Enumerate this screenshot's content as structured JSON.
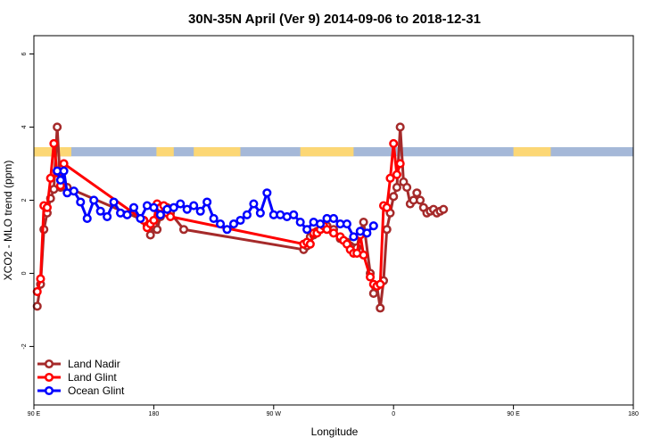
{
  "chart_data": {
    "type": "line",
    "title": "30N-35N April (Ver 9)   2014-09-06 to 2018-12-31",
    "xlabel": "Longitude",
    "ylabel": "XCO2 - MLO trend (ppm)",
    "x_domain": [
      -180,
      270
    ],
    "ylim": [
      -3.6,
      6.5
    ],
    "grid": false,
    "legend_position": "bottom-left",
    "x_ticks": [
      {
        "value": -180,
        "label": "90 E"
      },
      {
        "value": -90,
        "label": "180"
      },
      {
        "value": 0,
        "label": "90 W"
      },
      {
        "value": 90,
        "label": "0"
      },
      {
        "value": 180,
        "label": "90 E"
      },
      {
        "value": 270,
        "label": "180"
      }
    ],
    "y_ticks": [
      {
        "value": -2,
        "label": "-2"
      },
      {
        "value": 0,
        "label": "0"
      },
      {
        "value": 2,
        "label": "2"
      },
      {
        "value": 4,
        "label": "4"
      },
      {
        "value": 6,
        "label": "6"
      }
    ],
    "surface_band": {
      "y_bottom": 3.2,
      "y_top": 3.45,
      "ocean_color": "#a5b8d8",
      "land_color": "#fcd775",
      "land_ranges": [
        [
          -180,
          -152.5
        ],
        [
          -125,
          -90
        ],
        [
          -6.5,
          -7.5
        ],
        [
          -2,
          4
        ],
        [
          0,
          2
        ],
        [
          -118,
          -117
        ],
        [
          -122,
          -121
        ]
      ],
      "land_segments": [
        [
          -180,
          -152
        ],
        [
          -88,
          -75
        ],
        [
          -60,
          -25
        ],
        [
          20,
          60
        ],
        [
          -180,
          -152
        ],
        [
          180,
          208
        ]
      ]
    },
    "series": [
      {
        "name": "Land Nadir",
        "color": "#a52a2a",
        "x": [
          -177.5,
          -175,
          -172.5,
          -170,
          -167.5,
          -165,
          -162.5,
          -160,
          -155,
          -97.5,
          -95,
          -92.5,
          -90,
          -87.5,
          -85,
          -82.5,
          -80,
          -77.5,
          -67.5,
          22.5,
          25,
          27.5,
          30,
          32.5,
          35,
          37.5,
          40,
          45,
          50,
          52.5,
          55,
          57.5,
          60,
          62.5,
          65,
          67.5,
          72.5,
          75,
          77.5,
          80,
          82.5,
          85,
          87.5,
          90,
          92.5,
          95,
          97.5,
          100,
          102.5,
          105,
          107.5,
          110,
          112.5,
          115,
          117.5,
          120,
          122.5,
          125,
          127.5
        ],
        "y": [
          -0.9,
          -0.3,
          1.2,
          1.65,
          2.05,
          2.3,
          4.0,
          2.35,
          2.35,
          1.45,
          1.3,
          1.05,
          1.3,
          1.2,
          1.55,
          1.7,
          1.8,
          1.65,
          1.2,
          0.65,
          0.75,
          1.0,
          1.05,
          1.15,
          1.2,
          1.25,
          1.3,
          1.2,
          0.95,
          0.9,
          0.85,
          0.75,
          0.7,
          0.7,
          1.15,
          1.4,
          0.0,
          -0.55,
          -0.35,
          -0.95,
          -0.2,
          1.2,
          1.65,
          2.1,
          2.35,
          4.0,
          2.5,
          2.35,
          1.9,
          2.0,
          2.2,
          2.0,
          1.8,
          1.65,
          1.7,
          1.75,
          1.65,
          1.7,
          1.75
        ]
      },
      {
        "name": "Land Glint",
        "color": "#ff0000",
        "x": [
          -177.5,
          -175,
          -172.5,
          -170,
          -167.5,
          -165,
          -162.5,
          -160,
          -157.5,
          -97.5,
          -95,
          -92.5,
          -90,
          -87.5,
          -85,
          -82.5,
          -80,
          -77.5,
          22.5,
          25,
          27.5,
          30,
          32.5,
          35,
          37.5,
          40,
          45,
          50,
          52.5,
          55,
          57.5,
          60,
          62.5,
          65,
          67.5,
          72.5,
          75,
          77.5,
          80,
          82.5,
          85,
          87.5,
          90,
          92.5,
          95
        ],
        "y": [
          -0.5,
          -0.15,
          1.85,
          1.8,
          2.6,
          3.55,
          2.75,
          2.4,
          3.0,
          1.45,
          1.25,
          1.35,
          1.45,
          1.9,
          1.8,
          1.85,
          1.65,
          1.55,
          0.8,
          0.85,
          0.8,
          1.1,
          1.1,
          1.2,
          1.3,
          1.2,
          1.1,
          1.0,
          0.9,
          0.8,
          0.65,
          0.55,
          0.55,
          1.05,
          0.5,
          -0.1,
          -0.3,
          -0.35,
          -0.3,
          1.85,
          1.8,
          2.6,
          3.55,
          2.7,
          3.0
        ]
      },
      {
        "name": "Ocean Glint",
        "color": "#0000ff",
        "x": [
          -162.5,
          -160,
          -157.5,
          -155,
          -150,
          -145,
          -140,
          -135,
          -130,
          -125,
          -120,
          -115,
          -110,
          -105,
          -100,
          -95,
          -90,
          -85,
          -80,
          -75,
          -70,
          -65,
          -60,
          -55,
          -50,
          -45,
          -40,
          -35,
          -30,
          -25,
          -20,
          -15,
          -10,
          -5,
          0,
          5,
          10,
          15,
          20,
          25,
          30,
          35,
          40,
          45,
          50,
          55,
          60,
          65,
          70,
          75
        ],
        "y": [
          2.8,
          2.55,
          2.8,
          2.2,
          2.25,
          1.95,
          1.5,
          2.0,
          1.7,
          1.55,
          1.95,
          1.65,
          1.6,
          1.8,
          1.5,
          1.85,
          1.8,
          1.6,
          1.75,
          1.8,
          1.9,
          1.75,
          1.85,
          1.7,
          1.95,
          1.5,
          1.35,
          1.2,
          1.35,
          1.45,
          1.6,
          1.9,
          1.65,
          2.2,
          1.6,
          1.6,
          1.55,
          1.6,
          1.4,
          1.2,
          1.4,
          1.35,
          1.5,
          1.5,
          1.35,
          1.35,
          1.0,
          1.15,
          1.1,
          1.3
        ]
      }
    ]
  }
}
